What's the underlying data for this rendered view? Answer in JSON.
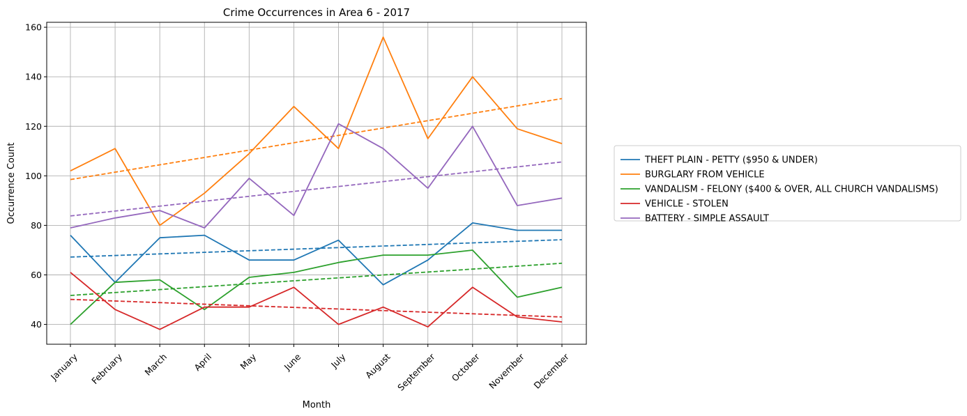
{
  "chart_data": {
    "type": "line",
    "title": "Crime Occurrences in Area 6 - 2017",
    "xlabel": "Month",
    "ylabel": "Occurrence Count",
    "categories": [
      "January",
      "February",
      "March",
      "April",
      "May",
      "June",
      "July",
      "August",
      "September",
      "October",
      "November",
      "December"
    ],
    "ylim": [
      32,
      162
    ],
    "yticks": [
      40,
      60,
      80,
      100,
      120,
      140,
      160
    ],
    "grid": true,
    "legend_position": "right",
    "series": [
      {
        "name": "THEFT PLAIN - PETTY ($950 & UNDER)",
        "color": "#1f77b4",
        "values": [
          76,
          57,
          75,
          76,
          66,
          66,
          74,
          56,
          66,
          81,
          78,
          78
        ],
        "trend": [
          67.2,
          74.2
        ]
      },
      {
        "name": "BURGLARY FROM VEHICLE",
        "color": "#ff7f0e",
        "values": [
          102,
          111,
          80,
          93,
          109,
          128,
          111,
          156,
          115,
          140,
          119,
          113
        ],
        "trend": [
          98.5,
          131.2
        ]
      },
      {
        "name": "VANDALISM - FELONY ($400 & OVER, ALL CHURCH VANDALISMS)",
        "color": "#2ca02c",
        "values": [
          40,
          57,
          58,
          46,
          59,
          61,
          65,
          68,
          68,
          70,
          51,
          55
        ],
        "trend": [
          51.7,
          64.7
        ]
      },
      {
        "name": "VEHICLE - STOLEN",
        "color": "#d62728",
        "values": [
          61,
          46,
          38,
          47,
          47,
          55,
          40,
          47,
          39,
          55,
          43,
          41
        ],
        "trend": [
          50.1,
          43.0
        ]
      },
      {
        "name": "BATTERY - SIMPLE ASSAULT",
        "color": "#9467bd",
        "values": [
          79,
          83,
          86,
          79,
          99,
          84,
          121,
          111,
          95,
          120,
          88,
          91
        ],
        "trend": [
          83.8,
          105.6
        ]
      }
    ]
  }
}
